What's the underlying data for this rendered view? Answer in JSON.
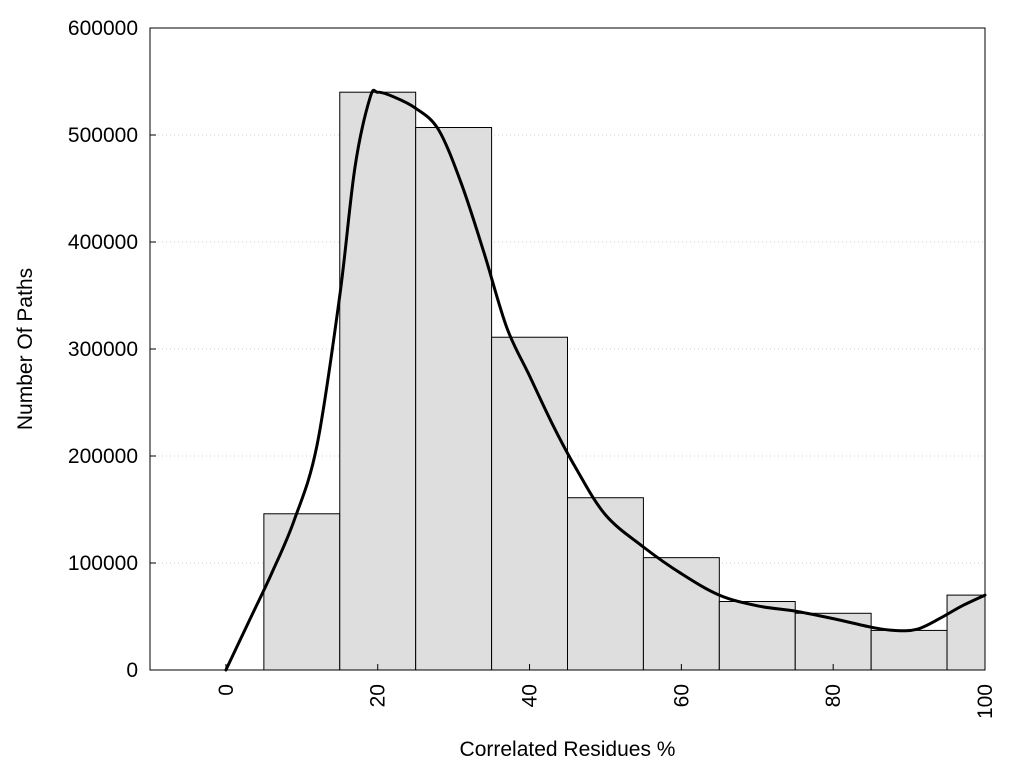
{
  "chart_data": {
    "type": "bar",
    "title": "",
    "xlabel": "Correlated Residues %",
    "ylabel": "Number Of Paths",
    "xlim": [
      -10,
      100
    ],
    "ylim": [
      0,
      600000
    ],
    "x_ticks": [
      0,
      20,
      40,
      60,
      80,
      100
    ],
    "x_tick_labels": [
      "0",
      "20",
      "40",
      "60",
      "80",
      "100"
    ],
    "y_ticks": [
      0,
      100000,
      200000,
      300000,
      400000,
      500000,
      600000
    ],
    "y_tick_labels": [
      "0",
      "100000",
      "200000",
      "300000",
      "400000",
      "500000",
      "600000"
    ],
    "bin_width": 10,
    "bin_centers": [
      10,
      20,
      30,
      40,
      50,
      60,
      70,
      80,
      90,
      100
    ],
    "values": [
      146000,
      540000,
      507000,
      311000,
      161000,
      105000,
      64000,
      53000,
      37000,
      70000
    ],
    "density_curve": {
      "x": [
        0,
        3,
        6,
        9,
        12,
        15,
        17,
        19,
        20,
        22,
        25,
        28,
        31,
        34,
        37,
        40,
        43,
        46,
        50,
        55,
        60,
        65,
        70,
        75,
        80,
        85,
        88,
        91,
        94,
        97,
        100
      ],
      "y": [
        0,
        45000,
        90000,
        140000,
        210000,
        350000,
        470000,
        535000,
        540000,
        536000,
        525000,
        505000,
        455000,
        390000,
        320000,
        275000,
        230000,
        190000,
        145000,
        115000,
        90000,
        70000,
        60000,
        55000,
        48000,
        40000,
        37000,
        38000,
        48000,
        60000,
        70000
      ]
    },
    "grid": "horizontal-dotted",
    "colors": {
      "bar_fill": "#dedede",
      "bar_stroke": "#000000",
      "curve": "#000000",
      "grid": "#cccccc"
    }
  }
}
